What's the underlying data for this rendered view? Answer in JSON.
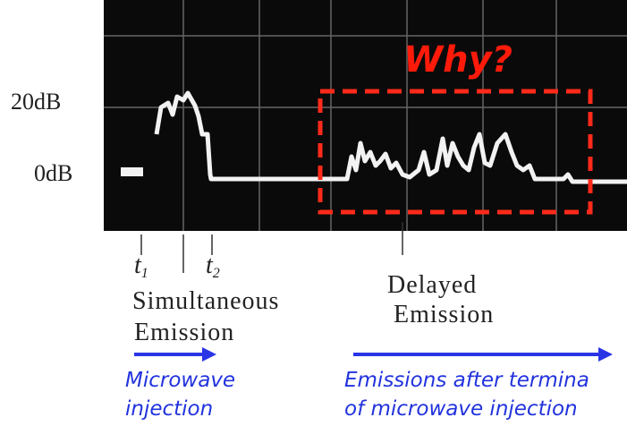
{
  "scope": {
    "level_labels": [
      "20dB",
      "0dB"
    ],
    "question": "Why?"
  },
  "markers": {
    "t1": {
      "base": "t",
      "sub": "1"
    },
    "t2": {
      "base": "t",
      "sub": "2"
    }
  },
  "captions": {
    "simultaneous": [
      "Simultaneous",
      "Emission"
    ],
    "delayed": [
      "Delayed",
      "Emission"
    ]
  },
  "annotations": {
    "microwave": [
      "Microwave",
      "injection"
    ],
    "after": [
      "Emissions after termina",
      "of microwave injection"
    ]
  }
}
